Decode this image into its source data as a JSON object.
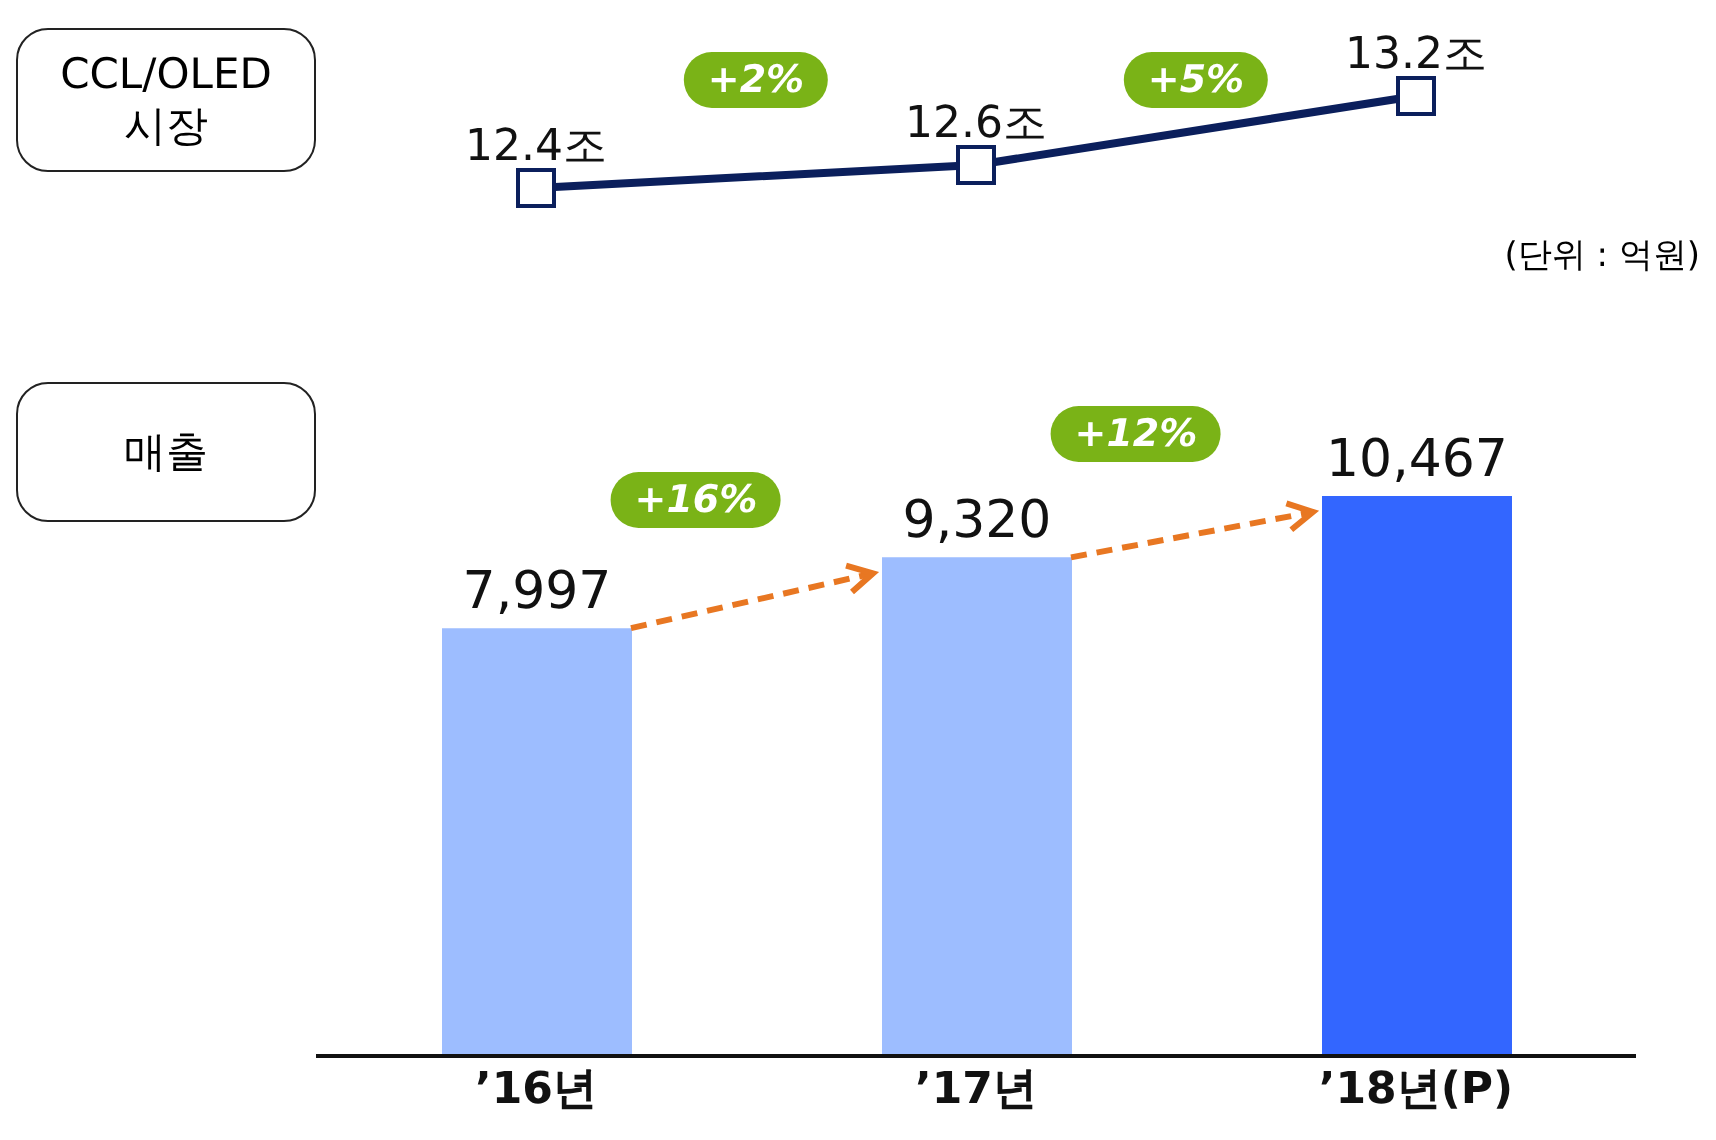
{
  "chart_data": [
    {
      "type": "line",
      "title": "CCL/OLED 시장",
      "categories": [
        null,
        null,
        null
      ],
      "values": [
        12.4,
        12.6,
        13.2
      ],
      "value_labels": [
        "12.4조",
        "12.6조",
        "13.2조"
      ],
      "color": "#0b1f5c",
      "marker": "square",
      "annotations": [
        "+2%",
        "+5%"
      ]
    },
    {
      "type": "bar",
      "title": "매출",
      "categories": [
        "’16년",
        "’17년",
        "’18년(P)"
      ],
      "values": [
        7997,
        9320,
        10467
      ],
      "value_labels": [
        "7,997",
        "9,320",
        "10,467"
      ],
      "colors": [
        "#9dbdff",
        "#9dbdff",
        "#3366ff"
      ],
      "annotations": [
        "(단위 : 억원)",
        "+16%",
        "+12%"
      ]
    }
  ]
}
